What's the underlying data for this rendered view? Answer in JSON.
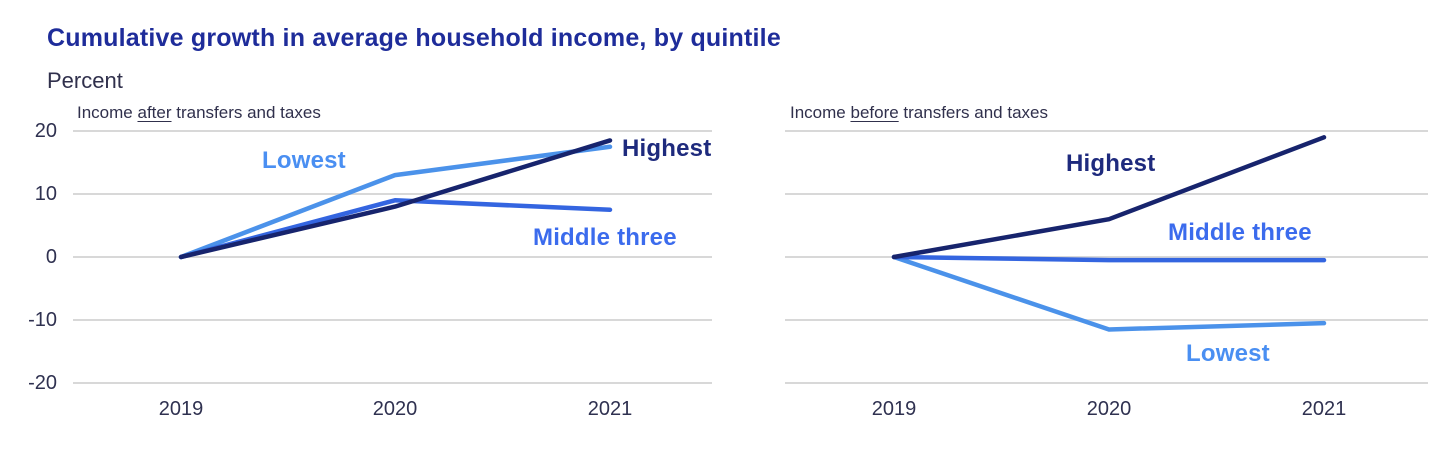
{
  "title": "Cumulative growth in average household income, by quintile",
  "y_axis_unit": "Percent",
  "colors": {
    "title": "#1e2c9a",
    "text": "#30304c",
    "grid": "#d8d8d8",
    "lowest": "#4b92ea",
    "middle": "#3465e0",
    "highest": "#17246d",
    "label_lowest": "#4a8ff2",
    "label_middle": "#3b6bed",
    "label_highest": "#1e2a7d"
  },
  "chart_data": [
    {
      "type": "line",
      "panel": "left",
      "subtitle": {
        "prefix": "Income ",
        "underlined": "after",
        "suffix": " transfers and taxes"
      },
      "x": [
        "2019",
        "2020",
        "2021"
      ],
      "ylim": [
        -20,
        20
      ],
      "yticks": [
        "20",
        "10",
        "0",
        "-10",
        "-20"
      ],
      "grid": true,
      "legend_position": "inline-labels",
      "series": [
        {
          "name": "Lowest",
          "values": [
            0,
            13,
            17.5
          ],
          "color_key": "lowest",
          "label_color_key": "label_lowest"
        },
        {
          "name": "Middle three",
          "values": [
            0,
            9,
            7.5
          ],
          "color_key": "middle",
          "label_color_key": "label_middle"
        },
        {
          "name": "Highest",
          "values": [
            0,
            8,
            18.5
          ],
          "color_key": "highest",
          "label_color_key": "label_highest"
        }
      ]
    },
    {
      "type": "line",
      "panel": "right",
      "subtitle": {
        "prefix": "Income ",
        "underlined": "before",
        "suffix": " transfers and taxes"
      },
      "x": [
        "2019",
        "2020",
        "2021"
      ],
      "ylim": [
        -20,
        20
      ],
      "yticks": [
        "20",
        "10",
        "0",
        "-10",
        "-20"
      ],
      "grid": true,
      "legend_position": "inline-labels",
      "series": [
        {
          "name": "Lowest",
          "values": [
            0,
            -11.5,
            -10.5
          ],
          "color_key": "lowest",
          "label_color_key": "label_lowest"
        },
        {
          "name": "Middle three",
          "values": [
            0,
            -0.5,
            -0.5
          ],
          "color_key": "middle",
          "label_color_key": "label_middle"
        },
        {
          "name": "Highest",
          "values": [
            0,
            6,
            19
          ],
          "color_key": "highest",
          "label_color_key": "label_highest"
        }
      ]
    }
  ]
}
